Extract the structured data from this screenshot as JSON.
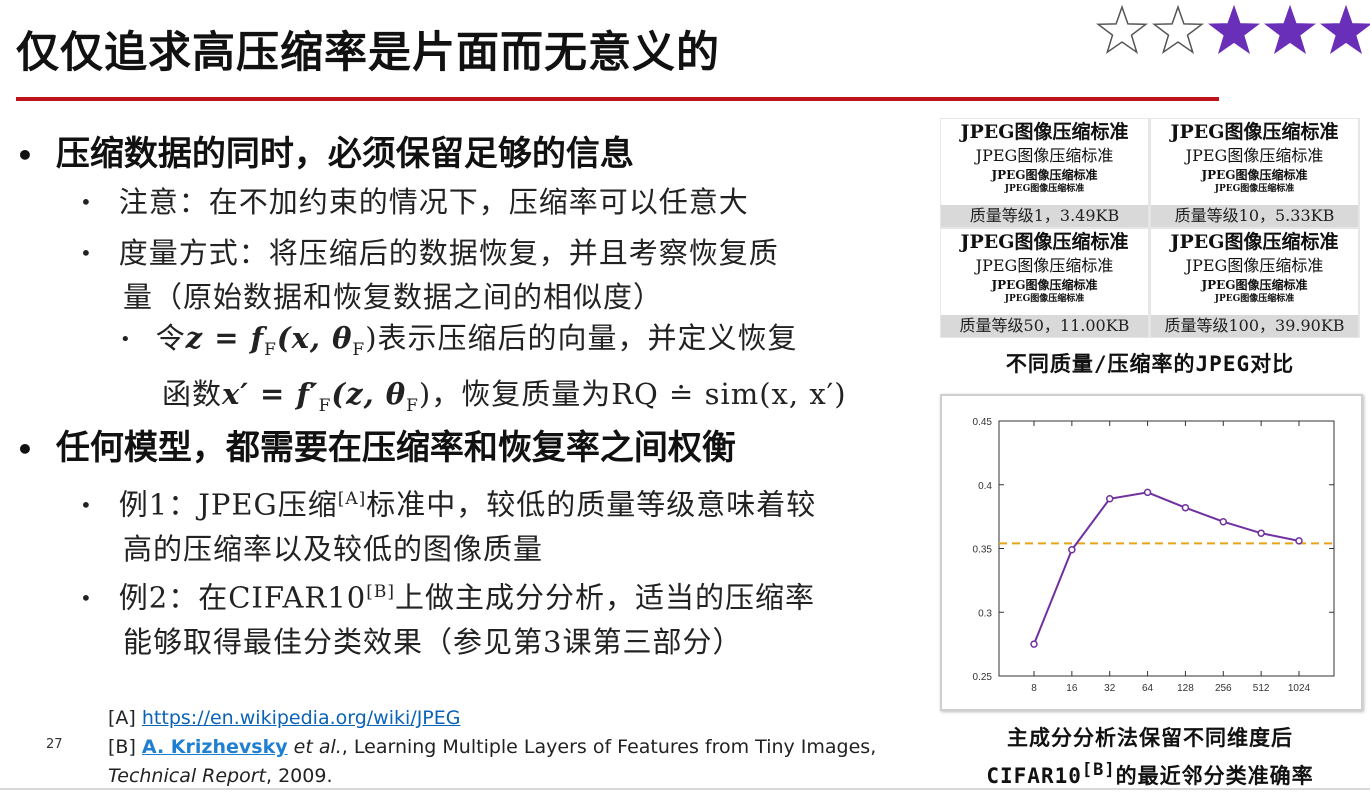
{
  "title": "仅仅追求高压缩率是片面而无意义的",
  "rating": {
    "filled": 3,
    "total": 5,
    "filled_color": "#6a2fb8",
    "empty_color": "#ffffff"
  },
  "bullets": {
    "b1": "压缩数据的同时，必须保留足够的信息",
    "b1_1": "注意：在不加约束的情况下，压缩率可以任意大",
    "b1_2_line1": "度量方式：将压缩后的数据恢复，并且考察恢复质",
    "b1_2_line2": "量（原始数据和恢复数据之间的相似度）",
    "b1_2_1_line1_pre": "令",
    "b1_2_1_line1_math": "z = f",
    "b1_2_1_line1_sub": "F",
    "b1_2_1_line1_math2": "(x, θ",
    "b1_2_1_line1_sub2": "F",
    "b1_2_1_line1_post": ")表示压缩后的向量，并定义恢复",
    "b1_2_1_line2_pre": "函数",
    "b1_2_1_line2_math": "x′ = f′",
    "b1_2_1_line2_sub": "F",
    "b1_2_1_line2_math2": "(z, θ",
    "b1_2_1_line2_sub2": "F",
    "b1_2_1_line2_post": ")，恢复质量为RQ ≐ sim(x, x′)",
    "b2": "任何模型，都需要在压缩率和恢复率之间权衡",
    "b2_1_line1_pre": "例1：JPEG压缩",
    "b2_1_line1_sup": "[A]",
    "b2_1_line1_post": "标准中，较低的质量等级意味着较",
    "b2_1_line2": "高的压缩率以及较低的图像质量",
    "b2_2_line1_pre": "例2：在CIFAR10",
    "b2_2_line1_sup": "[B]",
    "b2_2_line1_post": "上做主成分分析，适当的压缩率",
    "b2_2_line2": "能够取得最佳分类效果（参见第3课第三部分）"
  },
  "references": {
    "ref_a_label": "[A]",
    "ref_a_url": "https://en.wikipedia.org/wiki/JPEG",
    "ref_b_label": "[B]",
    "ref_b_author": "A. Krizhevsky",
    "ref_b_etal": " et al.",
    "ref_b_title": ", Learning Multiple Layers of Features from Tiny Images,",
    "ref_b_line2_italic": "Technical Report",
    "ref_b_line2_post": ", 2009."
  },
  "slide_number": "27",
  "jpeg_examples": {
    "sample_lines": [
      "JPEG图像压缩标准",
      "JPEG图像压缩标准",
      "JPEG图像压缩标准",
      "JPEG图像压缩标准"
    ],
    "cells": [
      {
        "caption": "质量等级1，3.49KB"
      },
      {
        "caption": "质量等级10，5.33KB"
      },
      {
        "caption": "质量等级50，11.00KB"
      },
      {
        "caption": "质量等级100，39.90KB"
      }
    ],
    "figure_caption": "不同质量/压缩率的JPEG对比"
  },
  "chart_caption_line1": "主成分分析法保留不同维度后",
  "chart_caption_line2_pre": "CIFAR10",
  "chart_caption_line2_sup": "[B]",
  "chart_caption_line2_post": "的最近邻分类准确率",
  "chart_data": {
    "type": "line",
    "categories": [
      "8",
      "16",
      "32",
      "64",
      "128",
      "256",
      "512",
      "1024"
    ],
    "series": [
      {
        "values": [
          0.275,
          0.349,
          0.389,
          0.394,
          0.382,
          0.371,
          0.362,
          0.356
        ],
        "color": "#7030a0"
      }
    ],
    "reference_line": {
      "y": 0.354,
      "color": "#e8a317",
      "style": "dashed"
    },
    "ylim": [
      0.25,
      0.45
    ],
    "yticks": [
      "0.25",
      "0.3",
      "0.35",
      "0.4",
      "0.45"
    ],
    "title": "",
    "xlabel": "",
    "ylabel": ""
  }
}
